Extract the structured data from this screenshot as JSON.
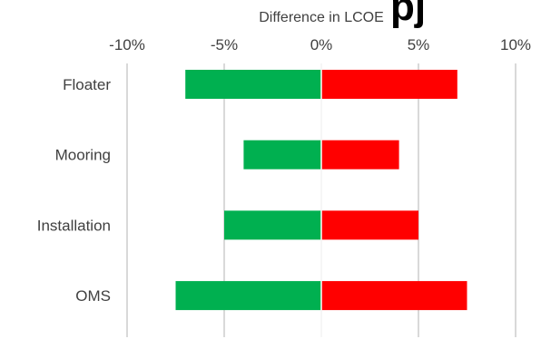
{
  "cutoff_title_fragment": "pj",
  "chart_data": {
    "type": "bar",
    "orientation": "horizontal",
    "title": "",
    "xlabel": "Difference in LCOE",
    "xlabel_position": "top",
    "ylabel": "",
    "xlim": [
      -10,
      10
    ],
    "x_tick_values": [
      -10,
      -5,
      0,
      5,
      10
    ],
    "x_tick_labels": [
      "-10%",
      "-5%",
      "0%",
      "5%",
      "10%"
    ],
    "grid": "vertical",
    "legend": "none",
    "categories": [
      "Floater",
      "Mooring",
      "Installation",
      "OMS"
    ],
    "series": [
      {
        "key": "low",
        "color": "#00B050",
        "values": [
          -7.0,
          -4.0,
          -5.0,
          -7.5
        ]
      },
      {
        "key": "high",
        "color": "#FF0000",
        "values": [
          7.0,
          4.0,
          5.0,
          7.5
        ]
      }
    ]
  }
}
